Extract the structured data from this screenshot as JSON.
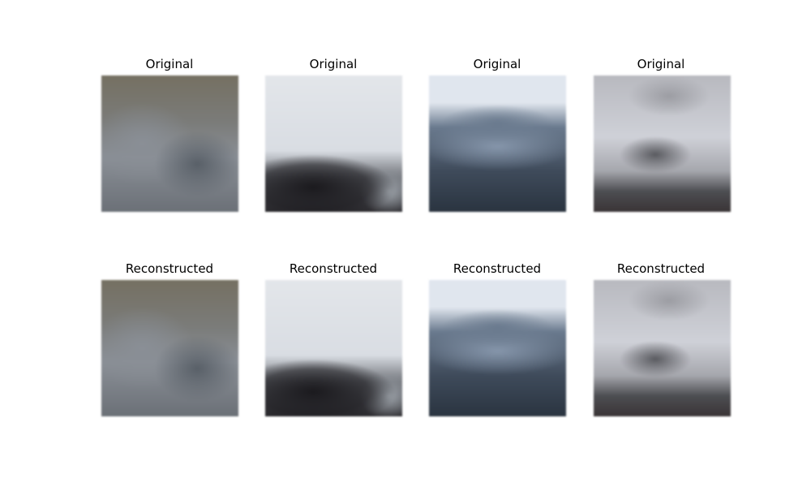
{
  "rows": [
    {
      "titles": [
        "Original",
        "Original",
        "Original",
        "Original"
      ]
    },
    {
      "titles": [
        "Reconstructed",
        "Reconstructed",
        "Reconstructed",
        "Reconstructed"
      ]
    }
  ],
  "images": [
    {
      "kind": "blurry-gray-olive",
      "colors": [
        "#757062",
        "#8a8f96",
        "#6b7077",
        "#596068"
      ]
    },
    {
      "kind": "blurry-white-dark-boat",
      "colors": [
        "#e3e6ea",
        "#d9dde3",
        "#1b1a1e",
        "#9ea4ab"
      ]
    },
    {
      "kind": "blurry-blue-ship",
      "colors": [
        "#e0e6ee",
        "#6a7a8e",
        "#3f4b5b",
        "#2a3440"
      ]
    },
    {
      "kind": "blurry-silver-car",
      "colors": [
        "#b8b9bf",
        "#cfd1d8",
        "#4d4e52",
        "#3a3436"
      ]
    }
  ]
}
